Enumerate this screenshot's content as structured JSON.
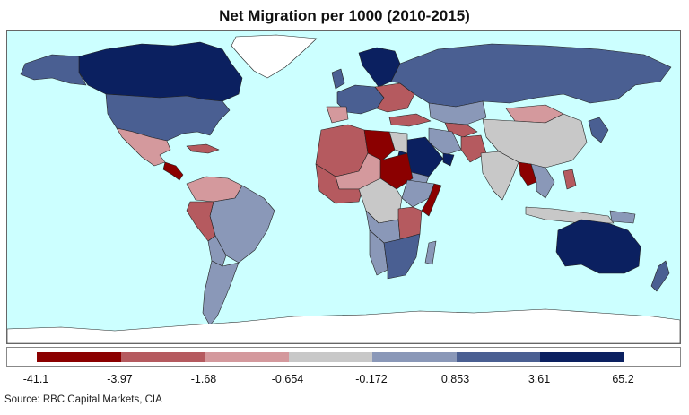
{
  "title": "Net Migration per 1000 (2010-2015)",
  "source": "Source: RBC Capital Markets, CIA",
  "colors": {
    "ocean": "#ccffff",
    "c1": "#8b0000",
    "c2": "#b55a5f",
    "c3": "#d4999d",
    "c4": "#c8c8c8",
    "c5": "#8a98b8",
    "c6": "#4a5f92",
    "c7": "#0b2060",
    "ice": "#ffffff"
  },
  "legend": {
    "bins": [
      {
        "from": "-41.1",
        "to": "-3.97",
        "color": "#8b0000"
      },
      {
        "from": "-3.97",
        "to": "-1.68",
        "color": "#b55a5f"
      },
      {
        "from": "-1.68",
        "to": "-0.654",
        "color": "#d4999d"
      },
      {
        "from": "-0.654",
        "to": "-0.172",
        "color": "#c8c8c8"
      },
      {
        "from": "-0.172",
        "to": "0.853",
        "color": "#8a98b8"
      },
      {
        "from": "0.853",
        "to": "3.61",
        "color": "#4a5f92"
      },
      {
        "from": "3.61",
        "to": "65.2",
        "color": "#0b2060"
      }
    ],
    "ticks": [
      "-41.1",
      "-3.97",
      "-1.68",
      "-0.654",
      "-0.172",
      "0.853",
      "3.61",
      "65.2"
    ]
  }
}
